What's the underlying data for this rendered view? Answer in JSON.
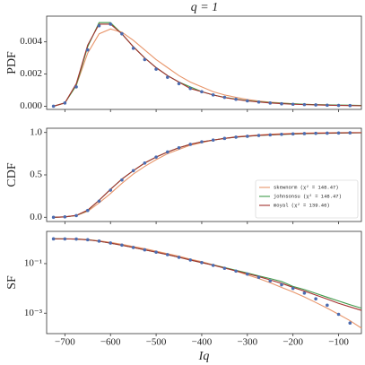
{
  "title": "q = 1",
  "chart_data": [
    {
      "type": "line",
      "ylabel": "PDF",
      "x": [
        -725,
        -700,
        -675,
        -650,
        -625,
        -600,
        -575,
        -550,
        -525,
        -500,
        -475,
        -450,
        -425,
        -400,
        -375,
        -350,
        -325,
        -300,
        -275,
        -250,
        -225,
        -200,
        -175,
        -150,
        -125,
        -100,
        -75,
        -50
      ],
      "xlim": [
        -740,
        -50
      ],
      "ylim": [
        -0.0002,
        0.0056
      ],
      "yticks": [
        {
          "value": 0,
          "label": "0.000"
        },
        {
          "value": 0.002,
          "label": "0.002"
        },
        {
          "value": 0.004,
          "label": "0.004"
        }
      ],
      "series": [
        {
          "color": "#e8956a",
          "values": [
            0.0,
            0.0002,
            0.0013,
            0.0033,
            0.0045,
            0.0048,
            0.0046,
            0.0041,
            0.0035,
            0.0029,
            0.0024,
            0.0019,
            0.0015,
            0.0012,
            0.0009,
            0.0007,
            0.00055,
            0.00042,
            0.00032,
            0.00025,
            0.0002,
            0.00015,
            0.00012,
            0.0001,
            8e-05,
            6e-05,
            5e-05,
            4e-05
          ]
        },
        {
          "color": "#3f9a4a",
          "values": [
            0.0,
            0.0002,
            0.0013,
            0.0037,
            0.0052,
            0.0052,
            0.0045,
            0.0037,
            0.003,
            0.0024,
            0.0019,
            0.0015,
            0.0012,
            0.0009,
            0.0007,
            0.00055,
            0.00044,
            0.00035,
            0.00028,
            0.00022,
            0.00018,
            0.00015,
            0.00012,
            0.0001,
            8e-05,
            7e-05,
            6e-05,
            5e-05
          ]
        },
        {
          "color": "#a3312f",
          "values": [
            0.0,
            0.0002,
            0.0014,
            0.0038,
            0.0051,
            0.0051,
            0.0045,
            0.0037,
            0.003,
            0.0024,
            0.0019,
            0.0015,
            0.0011,
            0.0009,
            0.0007,
            0.00054,
            0.00042,
            0.00033,
            0.00026,
            0.0002,
            0.00016,
            0.00012,
            0.0001,
            8e-05,
            6e-05,
            5e-05,
            4e-05,
            3e-05
          ]
        },
        {
          "color": "#4c6cb0",
          "marker": "o",
          "values": [
            0.0,
            0.0002,
            0.0012,
            0.0035,
            0.005,
            0.0051,
            0.0045,
            0.0036,
            0.0029,
            0.0023,
            0.0018,
            0.0014,
            0.0011,
            0.0009,
            0.0007,
            0.00055,
            0.00043,
            0.00033,
            0.00026,
            0.0002,
            0.00015,
            0.00012,
            0.0001,
            8e-05,
            6e-05,
            5e-05,
            4e-05,
            null
          ]
        }
      ]
    },
    {
      "type": "line",
      "ylabel": "CDF",
      "legend": "lower right",
      "x": [
        -725,
        -700,
        -675,
        -650,
        -625,
        -600,
        -575,
        -550,
        -525,
        -500,
        -475,
        -450,
        -425,
        -400,
        -375,
        -350,
        -325,
        -300,
        -275,
        -250,
        -225,
        -200,
        -175,
        -150,
        -125,
        -100,
        -75,
        -50
      ],
      "xlim": [
        -740,
        -50
      ],
      "ylim": [
        -0.05,
        1.05
      ],
      "yticks": [
        {
          "value": 0,
          "label": "0.0"
        },
        {
          "value": 0.5,
          "label": "0.5"
        },
        {
          "value": 1,
          "label": "1.0"
        }
      ],
      "series": [
        {
          "name": "skewnorm (χ² = 148.47)",
          "color": "#e8956a",
          "values": [
            0,
            0.004,
            0.02,
            0.07,
            0.17,
            0.28,
            0.4,
            0.51,
            0.6,
            0.68,
            0.75,
            0.8,
            0.85,
            0.88,
            0.91,
            0.93,
            0.95,
            0.96,
            0.97,
            0.98,
            0.985,
            0.99,
            0.993,
            0.995,
            0.997,
            0.998,
            0.999,
            0.999
          ]
        },
        {
          "name": "johnsonsu (χ² = 148.47)",
          "color": "#3f9a4a",
          "values": [
            0,
            0.005,
            0.02,
            0.08,
            0.2,
            0.33,
            0.45,
            0.55,
            0.64,
            0.71,
            0.77,
            0.82,
            0.86,
            0.89,
            0.91,
            0.93,
            0.945,
            0.955,
            0.964,
            0.971,
            0.977,
            0.982,
            0.986,
            0.989,
            0.991,
            0.993,
            0.995,
            0.996
          ]
        },
        {
          "name": "moyal (χ² = 139.46)",
          "color": "#a3312f",
          "values": [
            0,
            0.005,
            0.022,
            0.085,
            0.2,
            0.33,
            0.45,
            0.55,
            0.64,
            0.71,
            0.77,
            0.82,
            0.86,
            0.89,
            0.91,
            0.93,
            0.946,
            0.957,
            0.966,
            0.973,
            0.979,
            0.984,
            0.988,
            0.991,
            0.993,
            0.995,
            0.996,
            0.997
          ]
        },
        {
          "color": "#4c6cb0",
          "marker": "o",
          "values": [
            0,
            0.005,
            0.02,
            0.08,
            0.19,
            0.32,
            0.44,
            0.55,
            0.64,
            0.71,
            0.77,
            0.82,
            0.86,
            0.89,
            0.91,
            0.93,
            0.945,
            0.955,
            0.965,
            0.972,
            0.978,
            0.983,
            0.987,
            0.99,
            0.992,
            0.994,
            0.996,
            null
          ]
        }
      ]
    },
    {
      "type": "line",
      "ylabel": "SF",
      "xlabel": "Iq",
      "yscale": "log",
      "x": [
        -725,
        -700,
        -675,
        -650,
        -625,
        -600,
        -575,
        -550,
        -525,
        -500,
        -475,
        -450,
        -425,
        -400,
        -375,
        -350,
        -325,
        -300,
        -275,
        -250,
        -225,
        -200,
        -175,
        -150,
        -125,
        -100,
        -75,
        -50
      ],
      "xlim": [
        -740,
        -50
      ],
      "ylim": [
        0.00015,
        2
      ],
      "xticks": [
        {
          "value": -700,
          "label": "−700"
        },
        {
          "value": -600,
          "label": "−600"
        },
        {
          "value": -500,
          "label": "−500"
        },
        {
          "value": -400,
          "label": "−400"
        },
        {
          "value": -300,
          "label": "−300"
        },
        {
          "value": -200,
          "label": "−200"
        },
        {
          "value": -100,
          "label": "−100"
        }
      ],
      "yticks": [
        {
          "value": 0.1,
          "label": "10⁻¹"
        },
        {
          "value": 0.001,
          "label": "10⁻³"
        }
      ],
      "series": [
        {
          "color": "#e8956a",
          "values": [
            1.0,
            0.996,
            0.98,
            0.93,
            0.83,
            0.72,
            0.6,
            0.49,
            0.4,
            0.32,
            0.25,
            0.2,
            0.15,
            0.12,
            0.09,
            0.07,
            0.05,
            0.035,
            0.025,
            0.017,
            0.011,
            0.0072,
            0.0045,
            0.0027,
            0.0016,
            0.0009,
            0.0005,
            0.00025
          ]
        },
        {
          "color": "#3f9a4a",
          "values": [
            1.0,
            0.995,
            0.98,
            0.92,
            0.8,
            0.67,
            0.55,
            0.45,
            0.36,
            0.29,
            0.23,
            0.18,
            0.14,
            0.11,
            0.088,
            0.069,
            0.054,
            0.042,
            0.032,
            0.025,
            0.019,
            0.012,
            0.009,
            0.0063,
            0.0044,
            0.0031,
            0.0022,
            0.0016
          ]
        },
        {
          "color": "#a3312f",
          "values": [
            1.0,
            0.995,
            0.978,
            0.915,
            0.8,
            0.67,
            0.55,
            0.45,
            0.36,
            0.29,
            0.23,
            0.18,
            0.14,
            0.11,
            0.086,
            0.066,
            0.051,
            0.039,
            0.03,
            0.022,
            0.016,
            0.011,
            0.0078,
            0.0054,
            0.0037,
            0.0025,
            0.0018,
            0.0013
          ]
        },
        {
          "color": "#4c6cb0",
          "marker": "o",
          "values": [
            1.0,
            0.995,
            0.98,
            0.92,
            0.81,
            0.68,
            0.56,
            0.45,
            0.36,
            0.29,
            0.23,
            0.18,
            0.14,
            0.11,
            0.085,
            0.065,
            0.05,
            0.038,
            0.028,
            0.02,
            0.014,
            0.01,
            0.0065,
            0.0038,
            0.0021,
            0.0009,
            0.0004,
            null
          ]
        }
      ]
    }
  ]
}
